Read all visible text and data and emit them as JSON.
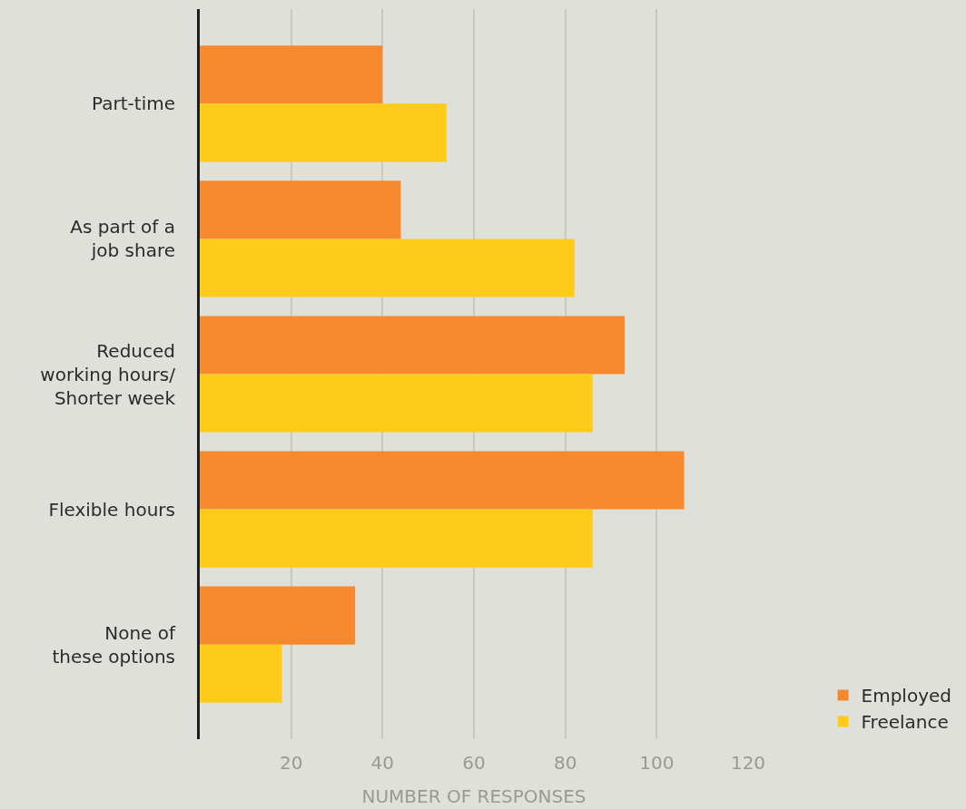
{
  "chart_data": {
    "type": "bar",
    "orientation": "horizontal",
    "categories": [
      "Part-time",
      "As part of a\njob share",
      "Reduced\nworking hours/\nShorter week",
      "Flexible hours",
      "None of\nthese options"
    ],
    "series": [
      {
        "name": "Employed",
        "color": "#f6892d",
        "values": [
          40,
          44,
          93,
          106,
          34
        ]
      },
      {
        "name": "Freelance",
        "color": "#fecb18",
        "values": [
          54,
          82,
          86,
          86,
          18
        ]
      }
    ],
    "xlabel": "NUMBER OF RESPONSES",
    "xlim": [
      0,
      120
    ],
    "xticks": [
      20,
      40,
      60,
      80,
      100,
      120
    ],
    "grid": "x",
    "legend": "bottom right"
  }
}
